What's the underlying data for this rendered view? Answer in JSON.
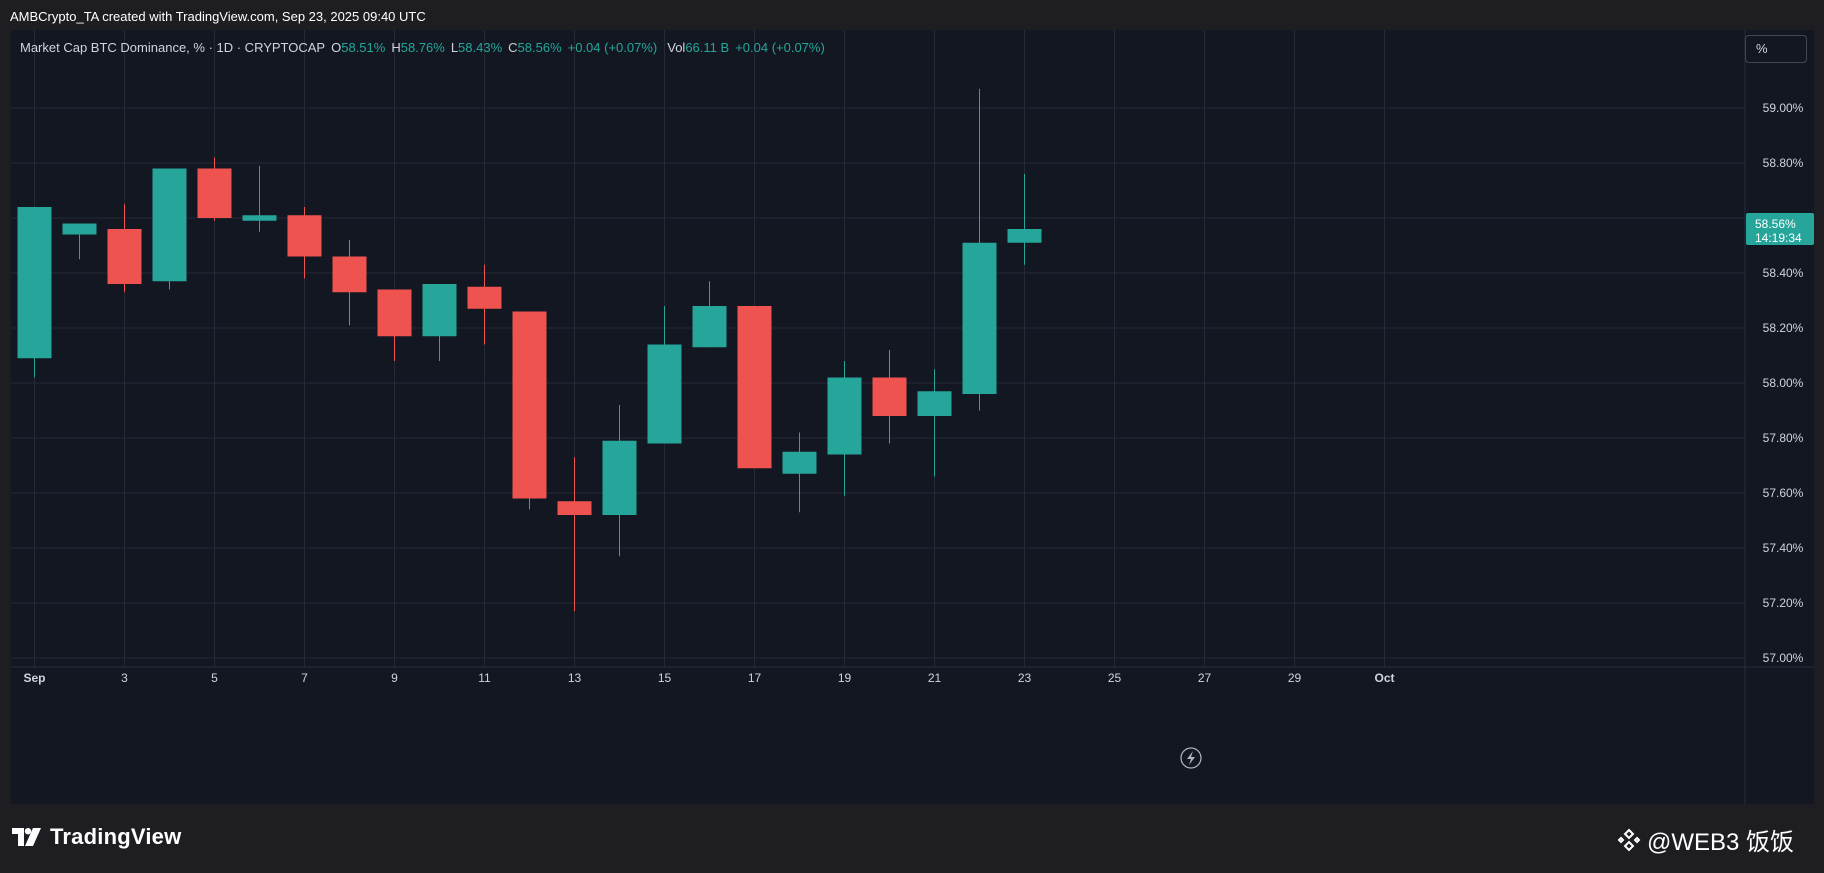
{
  "header": {
    "credit": "AMBCrypto_TA created with TradingView.com, Sep 23, 2025 09:40 UTC"
  },
  "legend": {
    "symbol": "Market Cap BTC Dominance, % · 1D · CRYPTOCAP",
    "o_key": "O",
    "o_val": "58.51%",
    "h_key": "H",
    "h_val": "58.76%",
    "l_key": "L",
    "l_val": "58.43%",
    "c_key": "C",
    "c_val": "58.56%",
    "change": "+0.04 (+0.07%)",
    "vol_key": "Vol",
    "vol_val": "66.11 B",
    "vol_change": "+0.04 (+0.07%)"
  },
  "scale_button": "%",
  "footer": {
    "logo_text": "TradingView",
    "watermark": "@WEB3 饭饭"
  },
  "colors": {
    "up": "#26a69a",
    "down": "#ef5350",
    "background": "#131722",
    "grid": "#262a36"
  },
  "chart_data": {
    "type": "candlestick",
    "title": "Market Cap BTC Dominance, % · 1D · CRYPTOCAP",
    "x_tick_labels": [
      "Sep",
      "3",
      "5",
      "7",
      "9",
      "11",
      "13",
      "15",
      "17",
      "19",
      "21",
      "23",
      "25",
      "27",
      "29",
      "Oct"
    ],
    "x_tick_days": [
      1,
      3,
      5,
      7,
      9,
      11,
      13,
      15,
      17,
      19,
      21,
      23,
      25,
      27,
      29,
      31
    ],
    "y_ticks": [
      "57.00%",
      "57.20%",
      "57.40%",
      "57.60%",
      "57.80%",
      "58.00%",
      "58.20%",
      "58.40%",
      "58.60%",
      "58.80%",
      "59.00%"
    ],
    "y_tick_values": [
      57.0,
      57.2,
      57.4,
      57.6,
      57.8,
      58.0,
      58.2,
      58.4,
      58.6,
      58.8,
      59.0
    ],
    "ylim": [
      56.97,
      59.2
    ],
    "last_price_label": "58.56%",
    "countdown_label": "14:19:34",
    "grid": true,
    "candles": [
      {
        "day": 1,
        "open": 58.09,
        "high": 58.64,
        "low": 58.02,
        "close": 58.64
      },
      {
        "day": 2,
        "open": 58.54,
        "high": 58.58,
        "low": 58.45,
        "close": 58.58
      },
      {
        "day": 3,
        "open": 58.56,
        "high": 58.65,
        "low": 58.33,
        "close": 58.36
      },
      {
        "day": 4,
        "open": 58.37,
        "high": 58.78,
        "low": 58.34,
        "close": 58.78
      },
      {
        "day": 5,
        "open": 58.78,
        "high": 58.82,
        "low": 58.59,
        "close": 58.6
      },
      {
        "day": 6,
        "open": 58.59,
        "high": 58.79,
        "low": 58.55,
        "close": 58.61
      },
      {
        "day": 7,
        "open": 58.61,
        "high": 58.64,
        "low": 58.38,
        "close": 58.46
      },
      {
        "day": 8,
        "open": 58.46,
        "high": 58.52,
        "low": 58.21,
        "close": 58.33
      },
      {
        "day": 9,
        "open": 58.34,
        "high": 58.34,
        "low": 58.08,
        "close": 58.17
      },
      {
        "day": 10,
        "open": 58.17,
        "high": 58.36,
        "low": 58.08,
        "close": 58.36
      },
      {
        "day": 11,
        "open": 58.35,
        "high": 58.43,
        "low": 58.14,
        "close": 58.27
      },
      {
        "day": 12,
        "open": 58.26,
        "high": 58.26,
        "low": 57.54,
        "close": 57.58
      },
      {
        "day": 13,
        "open": 57.57,
        "high": 57.73,
        "low": 57.17,
        "close": 57.52
      },
      {
        "day": 14,
        "open": 57.52,
        "high": 57.92,
        "low": 57.37,
        "close": 57.79
      },
      {
        "day": 15,
        "open": 57.78,
        "high": 58.28,
        "low": 57.78,
        "close": 58.14
      },
      {
        "day": 16,
        "open": 58.13,
        "high": 58.37,
        "low": 58.13,
        "close": 58.28
      },
      {
        "day": 17,
        "open": 58.28,
        "high": 58.28,
        "low": 57.69,
        "close": 57.69
      },
      {
        "day": 18,
        "open": 57.67,
        "high": 57.82,
        "low": 57.53,
        "close": 57.75
      },
      {
        "day": 19,
        "open": 57.74,
        "high": 58.08,
        "low": 57.59,
        "close": 58.02
      },
      {
        "day": 20,
        "open": 58.02,
        "high": 58.12,
        "low": 57.78,
        "close": 57.88
      },
      {
        "day": 21,
        "open": 57.88,
        "high": 58.05,
        "low": 57.66,
        "close": 57.97
      },
      {
        "day": 22,
        "open": 57.96,
        "high": 59.07,
        "low": 57.9,
        "close": 58.51
      },
      {
        "day": 23,
        "open": 58.51,
        "high": 58.76,
        "low": 58.43,
        "close": 58.56
      }
    ]
  }
}
